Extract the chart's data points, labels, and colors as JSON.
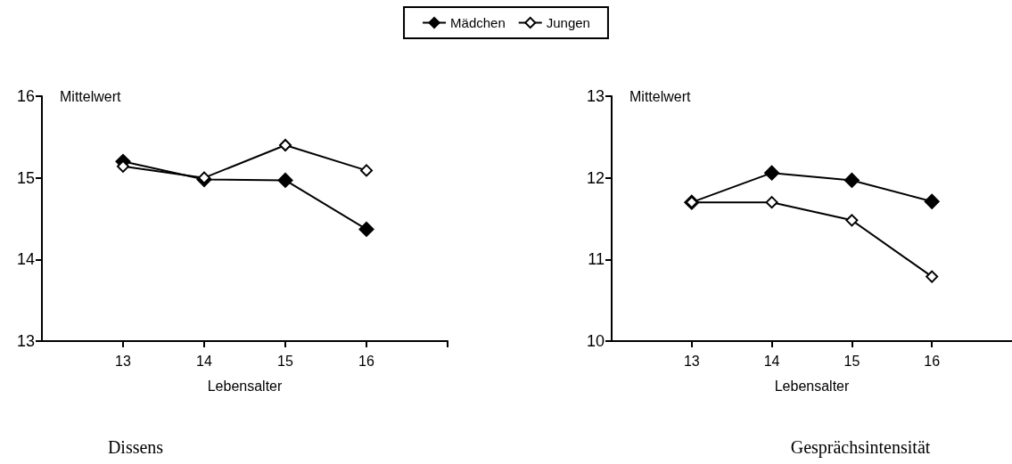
{
  "chart_data": [
    {
      "type": "line",
      "title": "Dissens",
      "xlabel": "Lebensalter",
      "ylabel": "Mittelwert",
      "x": [
        13,
        14,
        15,
        16
      ],
      "xlim": [
        12,
        17
      ],
      "xticks": [
        13,
        14,
        15,
        16,
        {
          "value": 17,
          "label": null
        }
      ],
      "ylim": [
        13,
        16
      ],
      "yticks": [
        13,
        14,
        15,
        16
      ],
      "marker": "diamond",
      "legend": "top",
      "grid": false,
      "series": [
        {
          "name": "Mädchen",
          "color": "#000000",
          "values": [
            15.2,
            14.98,
            14.97,
            14.37
          ]
        },
        {
          "name": "Jungen",
          "color": "#ffffff",
          "values": [
            15.14,
            15.0,
            15.4,
            15.09
          ]
        }
      ]
    },
    {
      "type": "line",
      "title": "Gesprächsintensität",
      "xlabel": "Lebensalter",
      "ylabel": "Mittelwert",
      "x": [
        13,
        14,
        15,
        16
      ],
      "xlim": [
        12,
        17
      ],
      "xticks": [
        13,
        14,
        15,
        16
      ],
      "ylim": [
        10,
        13
      ],
      "yticks": [
        10,
        11,
        12,
        13
      ],
      "marker": "diamond",
      "legend": false,
      "grid": false,
      "series": [
        {
          "color": "#000000",
          "values": [
            11.7,
            12.06,
            11.97,
            11.71
          ]
        },
        {
          "color": "#ffffff",
          "values": [
            11.7,
            11.7,
            11.48,
            10.79
          ]
        }
      ]
    }
  ]
}
